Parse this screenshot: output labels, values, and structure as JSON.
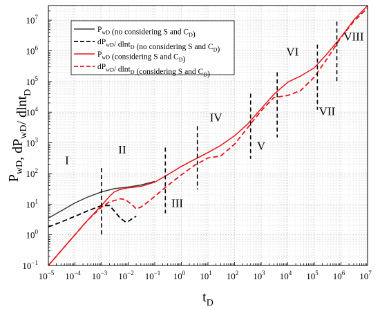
{
  "chart_data": {
    "type": "line",
    "xlabel": "tD",
    "ylabel": "PwD, dPwD/ dlntD",
    "xscale": "log",
    "yscale": "log",
    "xlim": [
      1e-05,
      10000000
    ],
    "ylim": [
      0.1,
      30000000
    ],
    "grid": true,
    "legend_position": "top-left",
    "x_tick_labels": [
      "10−5",
      "10−4",
      "10−3",
      "10−2",
      "10−1",
      "100",
      "101",
      "102",
      "103",
      "104",
      "105",
      "106",
      "107"
    ],
    "y_tick_labels": [
      "10−1",
      "100",
      "101",
      "102",
      "103",
      "104",
      "105",
      "106",
      "107"
    ],
    "legend": [
      "PwD (no considering S and CD)",
      "dPwD/ dlntD (no considering S and CD)",
      "PwD (considering S and CD)",
      "dPwD/ dlntD (considering S and CD)"
    ],
    "series": [
      {
        "name": "PwD (no considering S and CD)",
        "color": "#3a3a3a",
        "style": "solid",
        "x": [
          1e-05,
          3e-05,
          0.0001,
          0.0003,
          0.001,
          0.003,
          0.01,
          0.03,
          0.1
        ],
        "y": [
          3.5,
          6,
          11,
          17,
          25,
          32,
          36,
          42,
          55
        ]
      },
      {
        "name": "dPwD/ dlntD (no considering S and CD)",
        "color": "#000000",
        "style": "dashed",
        "x": [
          1e-05,
          3e-05,
          0.0001,
          0.0003,
          0.001,
          0.002,
          0.003,
          0.005,
          0.008,
          0.01,
          0.015,
          0.02
        ],
        "y": [
          1.8,
          2.6,
          4,
          6,
          9,
          9,
          6,
          3.5,
          2.6,
          2.7,
          3.5,
          4
        ]
      },
      {
        "name": "PwD (considering S and CD)",
        "color": "#e8141b",
        "style": "solid",
        "x": [
          1e-05,
          3e-05,
          0.0001,
          0.0003,
          0.001,
          0.002,
          0.003,
          0.005,
          0.01,
          0.03,
          0.1,
          0.3,
          1,
          3,
          10,
          30,
          100,
          300,
          1000,
          3000,
          10000,
          30000,
          100000,
          300000,
          1000000,
          3000000,
          10000000
        ],
        "y": [
          0.1,
          0.3,
          1,
          3,
          9,
          18,
          25,
          30,
          34,
          38,
          52,
          90,
          170,
          280,
          480,
          820,
          1700,
          4000,
          13000,
          38000,
          95000,
          150000,
          280000,
          800000,
          2800000,
          10000000,
          30000000
        ]
      },
      {
        "name": "dPwD/ dlntD (considering S and CD)",
        "color": "#e8141b",
        "style": "dashed",
        "x": [
          1e-05,
          3e-05,
          0.0001,
          0.0003,
          0.001,
          0.002,
          0.003,
          0.005,
          0.008,
          0.01,
          0.015,
          0.02,
          0.03,
          0.05,
          0.1,
          0.3,
          1,
          3,
          10,
          30,
          100,
          300,
          1000,
          3000,
          10000,
          30000,
          100000,
          300000,
          1000000,
          3000000,
          10000000
        ],
        "y": [
          0.1,
          0.3,
          1,
          3,
          8,
          12,
          13,
          15,
          14,
          12,
          9,
          7,
          8,
          11,
          18,
          40,
          90,
          180,
          320,
          370,
          900,
          3000,
          11000,
          30000,
          35000,
          50000,
          140000,
          550000,
          2700000,
          9000000,
          25000000
        ]
      }
    ],
    "regions": [
      {
        "label": "I",
        "x": 5e-05,
        "y": 200
      },
      {
        "label": "II",
        "x": 0.006,
        "y": 450
      },
      {
        "label": "III",
        "x": 0.7,
        "y": 8
      },
      {
        "label": "IV",
        "x": 20,
        "y": 5000
      },
      {
        "label": "V",
        "x": 1000,
        "y": 600
      },
      {
        "label": "VI",
        "x": 15000,
        "y": 700000
      },
      {
        "label": "VII",
        "x": 300000,
        "y": 8000
      },
      {
        "label": "VIII",
        "x": 3000000,
        "y": 2200000
      }
    ],
    "boundaries": [
      {
        "x": 0.001,
        "ymin": 1,
        "ymax": 150
      },
      {
        "x": 0.25,
        "ymin": 5,
        "ymax": 700
      },
      {
        "x": 4,
        "ymin": 30,
        "ymax": 3500
      },
      {
        "x": 400,
        "ymin": 300,
        "ymax": 40000
      },
      {
        "x": 4000,
        "ymin": 1500,
        "ymax": 200000
      },
      {
        "x": 130000,
        "ymin": 12000,
        "ymax": 1600000
      },
      {
        "x": 700000,
        "ymin": 100000,
        "ymax": 9000000
      }
    ]
  }
}
